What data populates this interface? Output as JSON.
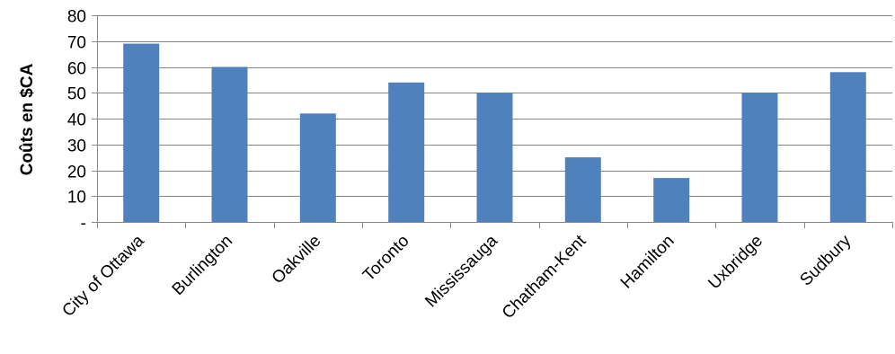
{
  "chart_data": {
    "type": "bar",
    "ylabel": "Coûts en $CA",
    "xlabel": "",
    "categories": [
      "City of Ottawa",
      "Burlington",
      "Oakville",
      "Toronto",
      "Mississauga",
      "Chatham-Kent",
      "Hamilton",
      "Uxbridge",
      "Sudbury"
    ],
    "values": [
      69,
      60,
      42,
      54,
      50,
      25,
      17,
      50,
      58
    ],
    "ylim": [
      0,
      80
    ],
    "yticks": [
      0,
      10,
      20,
      30,
      40,
      50,
      60,
      70,
      80
    ],
    "ytick_labels": [
      "-",
      "10",
      "20",
      "30",
      "40",
      "50",
      "60",
      "70",
      "80"
    ],
    "grid": true,
    "legend": "none",
    "colors": {
      "bar": "#4f81bd",
      "grid": "#868686",
      "axis": "#868686"
    }
  }
}
